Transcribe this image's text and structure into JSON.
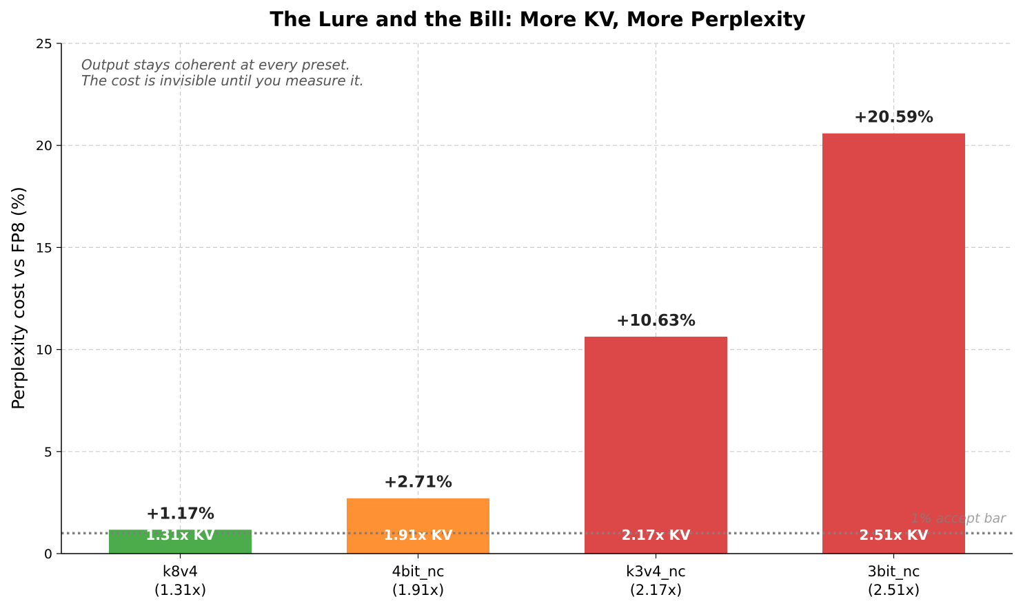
{
  "chart_data": {
    "type": "bar",
    "title": "The Lure and the Bill: More KV, More Perplexity",
    "xlabel": "",
    "ylabel": "Perplexity cost vs FP8 (%)",
    "ylim": [
      0,
      25
    ],
    "yticks": [
      "0",
      "5",
      "10",
      "15",
      "20",
      "25"
    ],
    "grid": true,
    "categories": [
      "k8v4\n(1.31x)",
      "4bit_nc\n(1.91x)",
      "k3v4_nc\n(2.17x)",
      "3bit_nc\n(2.51x)"
    ],
    "values": [
      1.17,
      2.71,
      10.63,
      20.59
    ],
    "value_labels": [
      "+1.17%",
      "+2.71%",
      "+10.63%",
      "+20.59%"
    ],
    "inner_labels": [
      "1.31x KV",
      "1.91x KV",
      "2.17x KV",
      "2.51x KV"
    ],
    "bar_colors": [
      "#4cac4c",
      "#fe9133",
      "#dc4848",
      "#dc4848"
    ],
    "reference_line": {
      "y": 1,
      "label": "1% accept bar",
      "color": "#808080"
    },
    "annotation": [
      "Output stays coherent at every preset.",
      "The cost is invisible until you measure it."
    ]
  }
}
